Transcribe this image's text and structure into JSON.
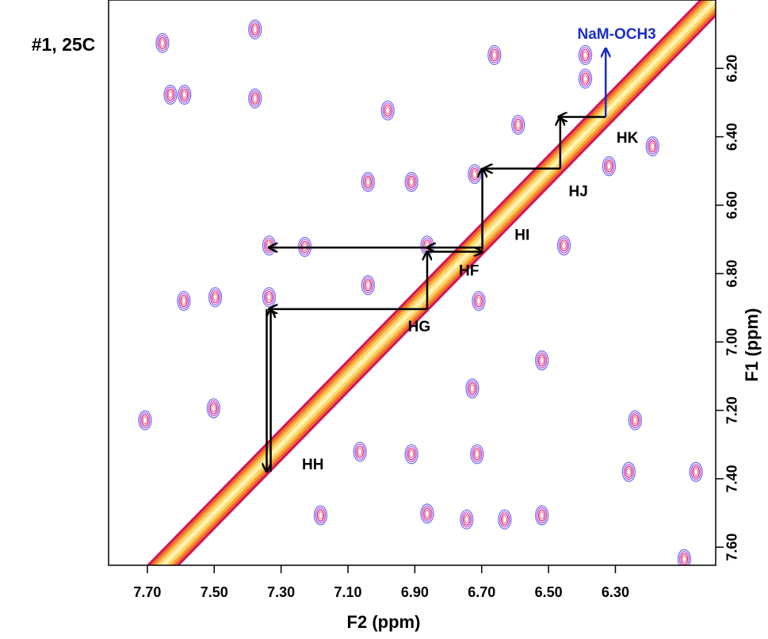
{
  "chart_data": {
    "type": "contour",
    "title": "#1, 25C",
    "xlabel": "F2 (ppm)",
    "ylabel": "F1 (ppm)",
    "xlim": [
      7.816,
      6.0
    ],
    "ylim": [
      7.653,
      6.0
    ],
    "xticks": [
      {
        "value": 7.7,
        "label": "7.70"
      },
      {
        "value": 7.5,
        "label": "7.50"
      },
      {
        "value": 7.3,
        "label": "7.30"
      },
      {
        "value": 7.1,
        "label": "7.10"
      },
      {
        "value": 6.9,
        "label": "6.90"
      },
      {
        "value": 6.7,
        "label": "6.70"
      },
      {
        "value": 6.5,
        "label": "6.50"
      },
      {
        "value": 6.3,
        "label": "6.30"
      }
    ],
    "yticks": [
      {
        "value": 6.2,
        "label": "6.20"
      },
      {
        "value": 6.4,
        "label": "6.40"
      },
      {
        "value": 6.6,
        "label": "6.60"
      },
      {
        "value": 6.8,
        "label": "6.80"
      },
      {
        "value": 7.0,
        "label": "7.00"
      },
      {
        "value": 7.2,
        "label": "7.20"
      },
      {
        "value": 7.4,
        "label": "7.40"
      },
      {
        "value": 7.6,
        "label": "7.60"
      }
    ],
    "peaks": {
      "x": [
        7.655,
        7.378,
        7.378,
        7.631,
        7.589,
        7.336,
        7.229,
        7.497,
        7.591,
        7.336,
        7.502,
        7.707,
        6.863,
        6.721,
        7.04,
        6.454,
        6.591,
        6.39,
        6.39,
        6.662,
        6.189,
        6.319,
        6.709,
        6.52,
        6.241,
        6.26,
        6.059,
        6.714,
        6.91,
        7.064,
        7.182,
        6.863,
        6.745,
        6.631,
        6.52,
        6.094,
        6.728,
        7.04,
        6.91,
        6.981
      ],
      "y": [
        6.126,
        6.086,
        6.288,
        6.277,
        6.277,
        6.718,
        6.722,
        6.869,
        6.88,
        6.869,
        7.194,
        7.229,
        6.718,
        6.509,
        6.532,
        6.718,
        6.365,
        6.23,
        6.161,
        6.161,
        6.428,
        6.486,
        6.88,
        7.054,
        7.229,
        7.38,
        7.38,
        7.328,
        7.328,
        7.321,
        7.507,
        7.502,
        7.519,
        7.519,
        7.507,
        7.635,
        7.136,
        6.834,
        6.532,
        6.323
      ]
    },
    "arrows": [
      {
        "color": "#1a2ec8",
        "segments": [
          [
            6.329,
            6.342,
            6.329,
            6.142
          ]
        ]
      },
      {
        "color": "#000000",
        "segments": [
          [
            6.329,
            6.342,
            6.47,
            6.342
          ],
          [
            6.465,
            6.493,
            6.465,
            6.342
          ],
          [
            6.465,
            6.493,
            6.693,
            6.493
          ],
          [
            6.698,
            6.729,
            6.698,
            6.493
          ],
          [
            6.863,
            6.736,
            6.698,
            6.736
          ],
          [
            6.698,
            6.724,
            6.863,
            6.724
          ],
          [
            6.863,
            6.724,
            7.336,
            6.724
          ],
          [
            6.863,
            6.904,
            6.863,
            6.736
          ],
          [
            6.863,
            6.904,
            7.336,
            6.904
          ],
          [
            7.343,
            6.904,
            7.343,
            7.379
          ],
          [
            7.331,
            7.379,
            7.331,
            6.904
          ]
        ]
      }
    ],
    "annotations": [
      {
        "text": "NaM-OCH3",
        "x": 6.296,
        "y": 6.102,
        "color": "#1a2ec8"
      },
      {
        "text": "HK",
        "x": 6.264,
        "y": 6.406
      },
      {
        "text": "HJ",
        "x": 6.411,
        "y": 6.562
      },
      {
        "text": "HI",
        "x": 6.579,
        "y": 6.69
      },
      {
        "text": "HF",
        "x": 6.738,
        "y": 6.794
      },
      {
        "text": "HG",
        "x": 6.887,
        "y": 6.958
      },
      {
        "text": "HH",
        "x": 7.205,
        "y": 7.361
      }
    ]
  }
}
